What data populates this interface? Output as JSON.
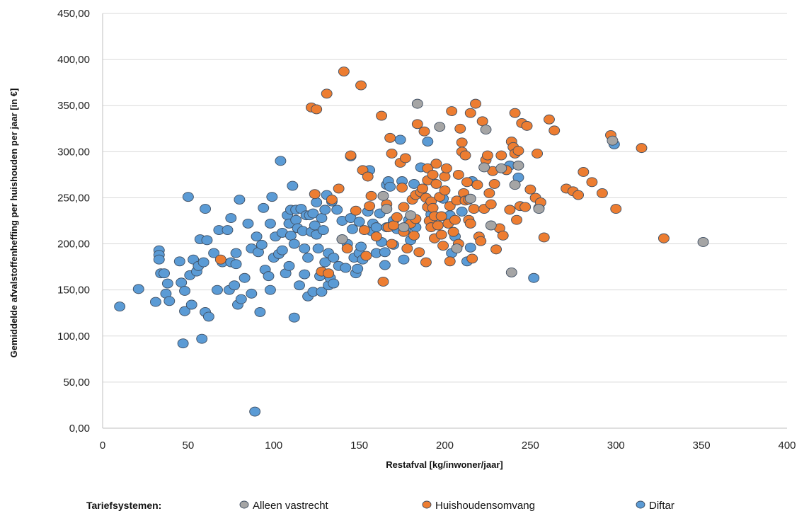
{
  "chart_data": {
    "type": "scatter",
    "xlabel": "Restafval [kg/inwoner/jaar]",
    "ylabel": "Gemiddelde afvalstoffenheffing per huishouden  per jaar [in €]",
    "xlim": [
      0,
      400
    ],
    "ylim": [
      0,
      450
    ],
    "x_ticks": [
      "0",
      "50",
      "100",
      "150",
      "200",
      "250",
      "300",
      "350",
      "400"
    ],
    "y_ticks": [
      "0,00",
      "50,00",
      "100,00",
      "150,00",
      "200,00",
      "250,00",
      "300,00",
      "350,00",
      "400,00",
      "450,00"
    ],
    "grid": true,
    "legend_position": "bottom",
    "legend_title": "Tariefsystemen:",
    "series": [
      {
        "name": "Diftar",
        "color": "#5b9bd5",
        "points": [
          [
            10,
            132
          ],
          [
            21,
            151
          ],
          [
            31,
            137
          ],
          [
            33,
            193
          ],
          [
            33,
            188
          ],
          [
            33,
            183
          ],
          [
            34,
            168
          ],
          [
            36,
            168
          ],
          [
            37,
            146
          ],
          [
            38,
            157
          ],
          [
            39,
            138
          ],
          [
            45,
            181
          ],
          [
            46,
            158
          ],
          [
            47,
            92
          ],
          [
            48,
            127
          ],
          [
            48,
            149
          ],
          [
            50,
            251
          ],
          [
            51,
            166
          ],
          [
            52,
            134
          ],
          [
            53,
            183
          ],
          [
            55,
            170
          ],
          [
            56,
            176
          ],
          [
            57,
            205
          ],
          [
            58,
            97
          ],
          [
            59,
            180
          ],
          [
            60,
            238
          ],
          [
            60,
            126
          ],
          [
            61,
            204
          ],
          [
            62,
            121
          ],
          [
            65,
            190
          ],
          [
            67,
            150
          ],
          [
            68,
            215
          ],
          [
            70,
            180
          ],
          [
            73,
            215
          ],
          [
            74,
            150
          ],
          [
            75,
            180
          ],
          [
            75,
            228
          ],
          [
            77,
            155
          ],
          [
            78,
            178
          ],
          [
            78,
            190
          ],
          [
            79,
            134
          ],
          [
            80,
            248
          ],
          [
            81,
            140
          ],
          [
            83,
            163
          ],
          [
            85,
            222
          ],
          [
            87,
            195
          ],
          [
            87,
            146
          ],
          [
            89,
            18
          ],
          [
            90,
            208
          ],
          [
            91,
            191
          ],
          [
            92,
            126
          ],
          [
            93,
            199
          ],
          [
            94,
            239
          ],
          [
            95,
            172
          ],
          [
            97,
            165
          ],
          [
            98,
            150
          ],
          [
            98,
            222
          ],
          [
            99,
            251
          ],
          [
            100,
            185
          ],
          [
            101,
            208
          ],
          [
            103,
            189
          ],
          [
            104,
            290
          ],
          [
            105,
            193
          ],
          [
            105,
            212
          ],
          [
            107,
            168
          ],
          [
            108,
            231
          ],
          [
            109,
            176
          ],
          [
            109,
            222
          ],
          [
            110,
            209
          ],
          [
            110,
            237
          ],
          [
            111,
            263
          ],
          [
            112,
            120
          ],
          [
            112,
            200
          ],
          [
            113,
            226
          ],
          [
            113,
            237
          ],
          [
            114,
            217
          ],
          [
            115,
            155
          ],
          [
            116,
            238
          ],
          [
            117,
            214
          ],
          [
            118,
            195
          ],
          [
            118,
            167
          ],
          [
            119,
            231
          ],
          [
            120,
            185
          ],
          [
            120,
            143
          ],
          [
            121,
            231
          ],
          [
            122,
            213
          ],
          [
            123,
            148
          ],
          [
            123,
            233
          ],
          [
            124,
            220
          ],
          [
            125,
            245
          ],
          [
            125,
            210
          ],
          [
            126,
            195
          ],
          [
            127,
            165
          ],
          [
            128,
            228
          ],
          [
            128,
            148
          ],
          [
            129,
            215
          ],
          [
            130,
            237
          ],
          [
            130,
            180
          ],
          [
            131,
            253
          ],
          [
            132,
            190
          ],
          [
            132,
            155
          ],
          [
            133,
            163
          ],
          [
            134,
            246
          ],
          [
            135,
            185
          ],
          [
            135,
            157
          ],
          [
            137,
            237
          ],
          [
            138,
            176
          ],
          [
            140,
            205
          ],
          [
            140,
            225
          ],
          [
            142,
            174
          ],
          [
            143,
            200
          ],
          [
            145,
            295
          ],
          [
            145,
            228
          ],
          [
            146,
            216
          ],
          [
            147,
            185
          ],
          [
            148,
            168
          ],
          [
            149,
            173
          ],
          [
            150,
            224
          ],
          [
            150,
            190
          ],
          [
            151,
            197
          ],
          [
            152,
            183
          ],
          [
            155,
            235
          ],
          [
            156,
            280
          ],
          [
            157,
            214
          ],
          [
            158,
            222
          ],
          [
            160,
            218
          ],
          [
            160,
            190
          ],
          [
            162,
            233
          ],
          [
            163,
            202
          ],
          [
            165,
            177
          ],
          [
            165,
            191
          ],
          [
            166,
            218
          ],
          [
            166,
            264
          ],
          [
            167,
            268
          ],
          [
            168,
            262
          ],
          [
            170,
            199
          ],
          [
            170,
            225
          ],
          [
            172,
            216
          ],
          [
            174,
            313
          ],
          [
            175,
            268
          ],
          [
            176,
            183
          ],
          [
            177,
            216
          ],
          [
            179,
            226
          ],
          [
            180,
            204
          ],
          [
            182,
            265
          ],
          [
            183,
            218
          ],
          [
            186,
            283
          ],
          [
            190,
            311
          ],
          [
            192,
            232
          ],
          [
            199,
            249
          ],
          [
            203,
            231
          ],
          [
            204,
            190
          ],
          [
            206,
            208
          ],
          [
            210,
            235
          ],
          [
            213,
            181
          ],
          [
            215,
            196
          ],
          [
            216,
            268
          ],
          [
            238,
            285
          ],
          [
            243,
            272
          ],
          [
            252,
            163
          ],
          [
            299,
            308
          ]
        ]
      },
      {
        "name": "Huishoudensomvang",
        "color": "#ed7d31",
        "points": [
          [
            69,
            183
          ],
          [
            122,
            348
          ],
          [
            124,
            254
          ],
          [
            125,
            346
          ],
          [
            128,
            170
          ],
          [
            131,
            363
          ],
          [
            132,
            168
          ],
          [
            134,
            248
          ],
          [
            138,
            260
          ],
          [
            141,
            387
          ],
          [
            143,
            195
          ],
          [
            145,
            296
          ],
          [
            148,
            236
          ],
          [
            151,
            372
          ],
          [
            152,
            280
          ],
          [
            153,
            215
          ],
          [
            154,
            187
          ],
          [
            155,
            273
          ],
          [
            156,
            241
          ],
          [
            157,
            252
          ],
          [
            160,
            208
          ],
          [
            163,
            339
          ],
          [
            164,
            159
          ],
          [
            166,
            243
          ],
          [
            167,
            218
          ],
          [
            168,
            315
          ],
          [
            169,
            298
          ],
          [
            169,
            200
          ],
          [
            170,
            220
          ],
          [
            172,
            229
          ],
          [
            174,
            288
          ],
          [
            175,
            261
          ],
          [
            176,
            240
          ],
          [
            176,
            213
          ],
          [
            177,
            293
          ],
          [
            178,
            195
          ],
          [
            180,
            222
          ],
          [
            181,
            248
          ],
          [
            182,
            209
          ],
          [
            183,
            227
          ],
          [
            183,
            253
          ],
          [
            184,
            330
          ],
          [
            185,
            191
          ],
          [
            186,
            256
          ],
          [
            187,
            260
          ],
          [
            188,
            322
          ],
          [
            189,
            180
          ],
          [
            189,
            250
          ],
          [
            190,
            282
          ],
          [
            190,
            269
          ],
          [
            190,
            240
          ],
          [
            191,
            225
          ],
          [
            192,
            246
          ],
          [
            192,
            218
          ],
          [
            193,
            239
          ],
          [
            193,
            275
          ],
          [
            194,
            230
          ],
          [
            194,
            206
          ],
          [
            195,
            265
          ],
          [
            195,
            287
          ],
          [
            196,
            220
          ],
          [
            197,
            251
          ],
          [
            198,
            210
          ],
          [
            198,
            230
          ],
          [
            199,
            198
          ],
          [
            200,
            273
          ],
          [
            200,
            258
          ],
          [
            201,
            282
          ],
          [
            202,
            222
          ],
          [
            203,
            241
          ],
          [
            203,
            181
          ],
          [
            204,
            344
          ],
          [
            205,
            213
          ],
          [
            206,
            226
          ],
          [
            207,
            247
          ],
          [
            208,
            200
          ],
          [
            208,
            275
          ],
          [
            209,
            325
          ],
          [
            210,
            310
          ],
          [
            210,
            300
          ],
          [
            211,
            255
          ],
          [
            212,
            247
          ],
          [
            212,
            296
          ],
          [
            213,
            267
          ],
          [
            214,
            248
          ],
          [
            214,
            226
          ],
          [
            215,
            222
          ],
          [
            215,
            342
          ],
          [
            216,
            184
          ],
          [
            217,
            238
          ],
          [
            218,
            352
          ],
          [
            219,
            264
          ],
          [
            220,
            208
          ],
          [
            221,
            203
          ],
          [
            222,
            333
          ],
          [
            223,
            238
          ],
          [
            224,
            291
          ],
          [
            225,
            296
          ],
          [
            226,
            255
          ],
          [
            227,
            243
          ],
          [
            228,
            279
          ],
          [
            229,
            265
          ],
          [
            230,
            194
          ],
          [
            232,
            217
          ],
          [
            233,
            296
          ],
          [
            234,
            209
          ],
          [
            236,
            280
          ],
          [
            238,
            237
          ],
          [
            239,
            311
          ],
          [
            240,
            305
          ],
          [
            241,
            342
          ],
          [
            241,
            298
          ],
          [
            242,
            226
          ],
          [
            243,
            301
          ],
          [
            244,
            241
          ],
          [
            245,
            331
          ],
          [
            247,
            240
          ],
          [
            248,
            328
          ],
          [
            250,
            259
          ],
          [
            253,
            250
          ],
          [
            254,
            298
          ],
          [
            255,
            239
          ],
          [
            256,
            245
          ],
          [
            258,
            207
          ],
          [
            261,
            335
          ],
          [
            264,
            323
          ],
          [
            271,
            260
          ],
          [
            275,
            257
          ],
          [
            278,
            253
          ],
          [
            281,
            278
          ],
          [
            286,
            267
          ],
          [
            292,
            255
          ],
          [
            297,
            318
          ],
          [
            300,
            238
          ],
          [
            315,
            304
          ],
          [
            328,
            206
          ]
        ]
      },
      {
        "name": "Alleen vastrecht",
        "color": "#a5a5a5",
        "points": [
          [
            140,
            205
          ],
          [
            164,
            252
          ],
          [
            166,
            238
          ],
          [
            176,
            218
          ],
          [
            180,
            231
          ],
          [
            184,
            352
          ],
          [
            197,
            327
          ],
          [
            207,
            195
          ],
          [
            215,
            249
          ],
          [
            223,
            283
          ],
          [
            224,
            324
          ],
          [
            227,
            220
          ],
          [
            233,
            282
          ],
          [
            239,
            169
          ],
          [
            241,
            264
          ],
          [
            243,
            285
          ],
          [
            255,
            238
          ],
          [
            298,
            312
          ],
          [
            351,
            202
          ]
        ]
      }
    ]
  }
}
